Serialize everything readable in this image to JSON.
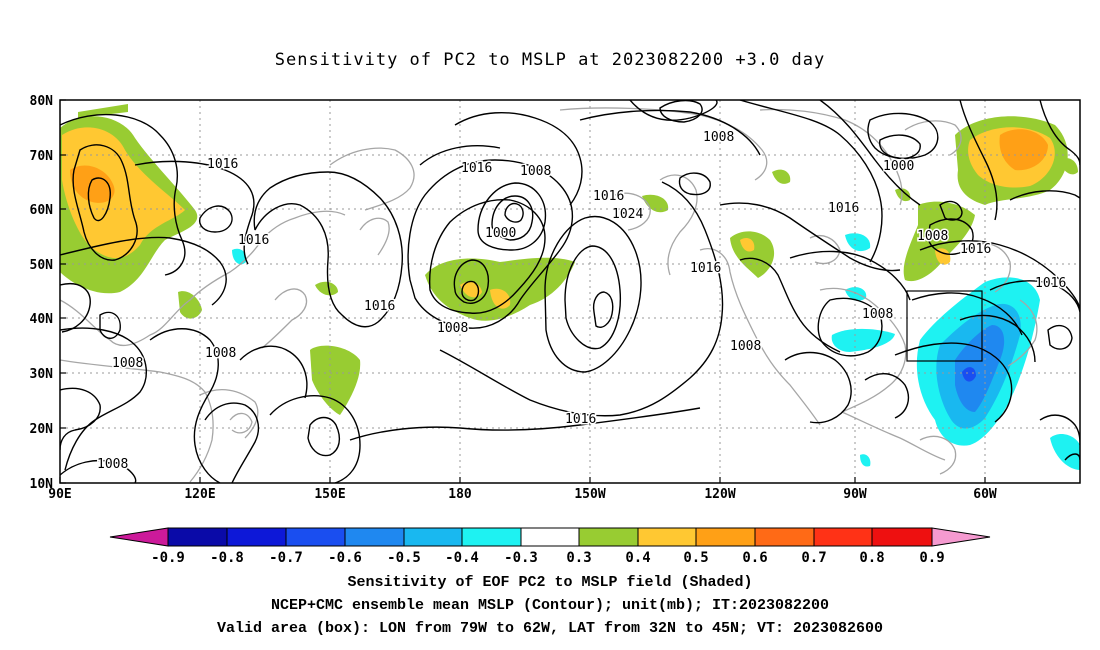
{
  "title": "Sensitivity of PC2 to MSLP at 2023082200 +3.0 day",
  "axes": {
    "lat_labels": [
      "80N",
      "70N",
      "60N",
      "50N",
      "40N",
      "30N",
      "20N",
      "10N"
    ],
    "lon_labels": [
      "90E",
      "120E",
      "150E",
      "180",
      "150W",
      "120W",
      "90W",
      "60W"
    ]
  },
  "contour_labels": [
    "1016",
    "1016",
    "1008",
    "1016",
    "1008",
    "1000",
    "1016",
    "1024",
    "1008",
    "1016",
    "1000",
    "1008",
    "1016",
    "1016",
    "1016",
    "1008",
    "1016",
    "1008",
    "1008",
    "1008",
    "1016",
    "1008"
  ],
  "colorbar": {
    "labels": [
      "-0.9",
      "-0.8",
      "-0.7",
      "-0.6",
      "-0.5",
      "-0.4",
      "-0.3",
      "0.3",
      "0.4",
      "0.5",
      "0.6",
      "0.7",
      "0.8",
      "0.9"
    ],
    "colors": [
      "#cc1a9a",
      "#0a0aa8",
      "#0d18d8",
      "#1a4ef0",
      "#1f88f0",
      "#19b8f0",
      "#1ef2f2",
      "#ffffff",
      "#98cc32",
      "#ffc832",
      "#ffa016",
      "#ff6a16",
      "#ff3216",
      "#ee1010",
      "#f59ad0"
    ]
  },
  "captions": [
    "Sensitivity of EOF PC2 to MSLP field (Shaded)",
    "NCEP+CMC ensemble mean MSLP (Contour); unit(mb); IT:2023082200",
    "Valid area (box): LON from 79W to 62W, LAT from 32N to 45N; VT: 2023082600"
  ]
}
